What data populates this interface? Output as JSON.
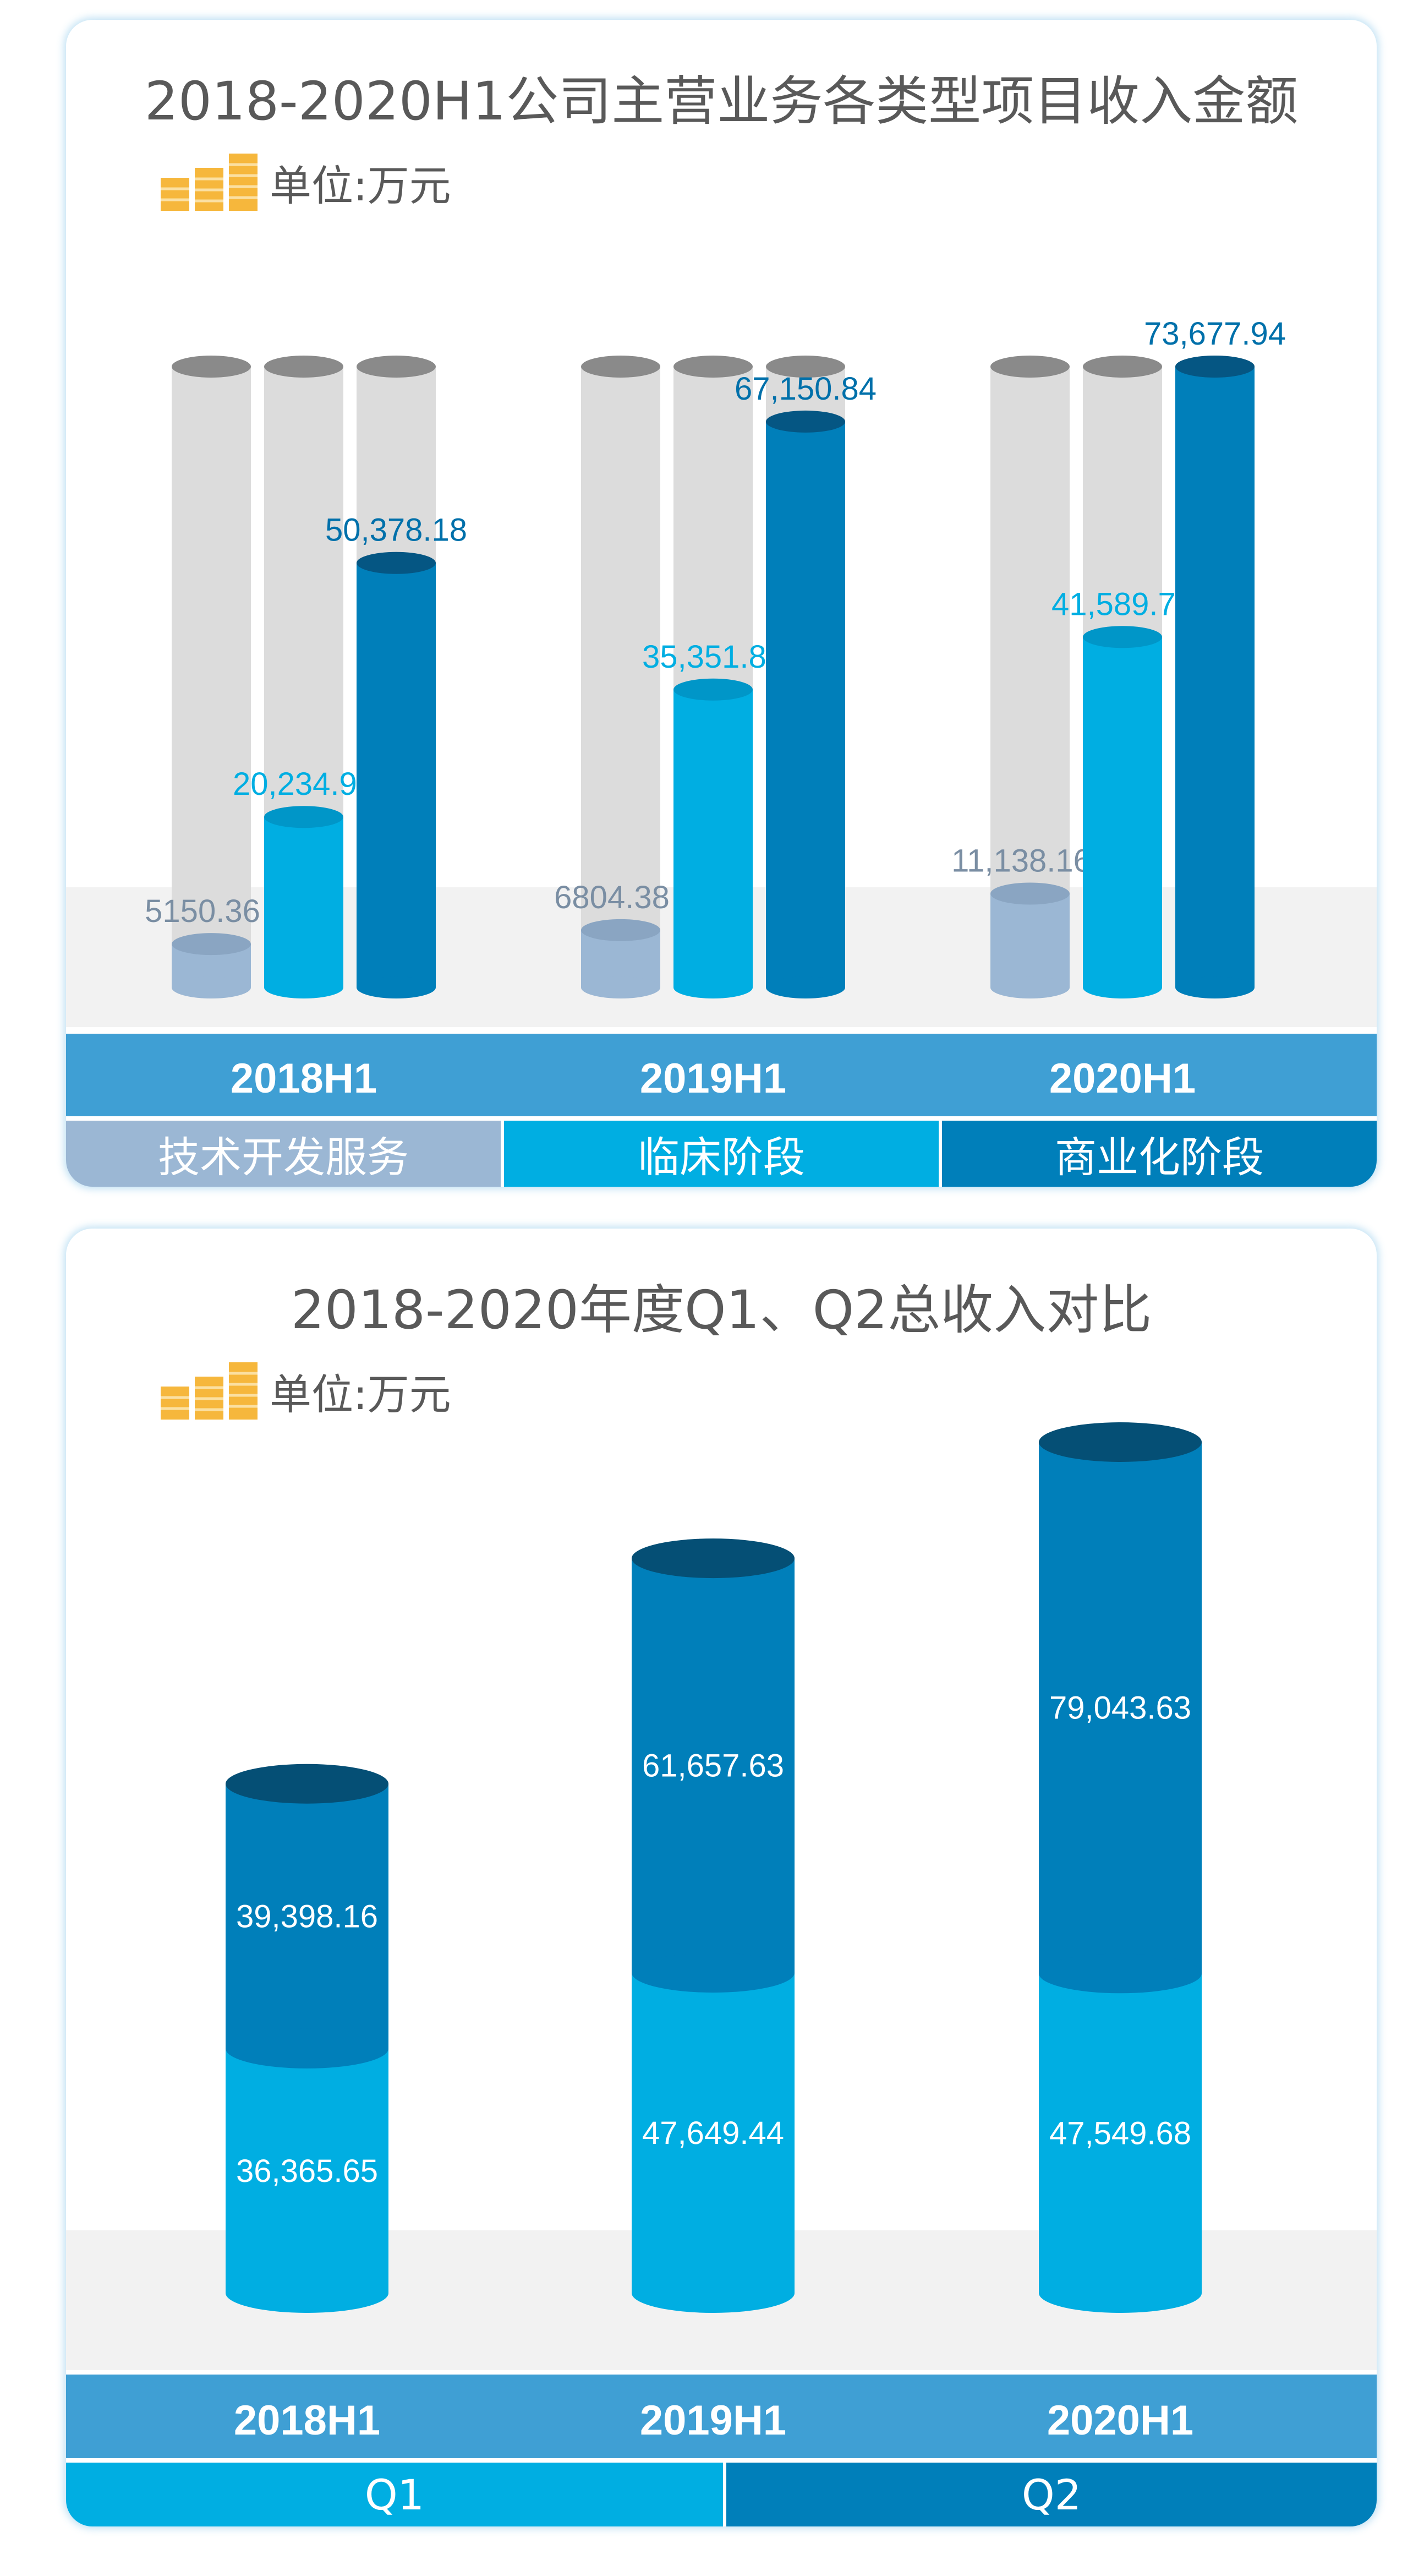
{
  "chart_data": [
    {
      "type": "bar",
      "title": "2018-2020H1公司主营业务各类型项目收入金额",
      "unit_label": "单位:万元",
      "categories": [
        "2018H1",
        "2019H1",
        "2020H1"
      ],
      "series": [
        {
          "name": "技术开发服务",
          "values": [
            5150.36,
            6804.38,
            11138.16
          ],
          "labels": [
            "5150.36",
            "6804.38",
            "11,138.16"
          ],
          "color": "#9bb7d4"
        },
        {
          "name": "临床阶段",
          "values": [
            20234.96,
            35351.85,
            41589.72
          ],
          "labels": [
            "20,234.96",
            "35,351.85",
            "41,589.72"
          ],
          "color": "#00aee2"
        },
        {
          "name": "商业化阶段",
          "values": [
            50378.18,
            67150.84,
            73677.94
          ],
          "labels": [
            "50,378.18",
            "67,150.84",
            "73,677.94"
          ],
          "color": "#007fba"
        }
      ],
      "ylim": [
        0,
        73677.94
      ],
      "grid": false,
      "legend": "bottom",
      "colors": {
        "track": "#dcdcdc",
        "track_cap": "#8a8a8a",
        "band": "#3f9fd4"
      }
    },
    {
      "type": "bar",
      "stacked": true,
      "title": "2018-2020年度Q1、Q2总收入对比",
      "unit_label": "单位:万元",
      "categories": [
        "2018H1",
        "2019H1",
        "2020H1"
      ],
      "series": [
        {
          "name": "Q1",
          "values": [
            36365.65,
            47649.44,
            47549.68
          ],
          "labels": [
            "36,365.65",
            "47,649.44",
            "47,549.68"
          ],
          "color": "#00aee2"
        },
        {
          "name": "Q2",
          "values": [
            39398.16,
            61657.63,
            79043.63
          ],
          "labels": [
            "39,398.16",
            "61,657.63",
            "79,043.63"
          ],
          "color": "#007fba"
        }
      ],
      "grid": false,
      "legend": "bottom",
      "colors": {
        "top_cap": "#054f75",
        "band": "#3f9fd4"
      }
    }
  ]
}
